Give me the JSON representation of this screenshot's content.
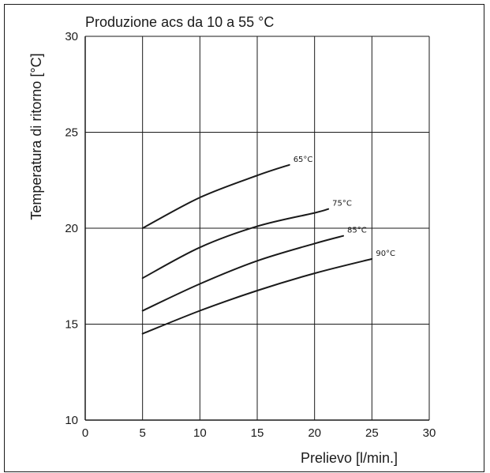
{
  "chart_data": {
    "type": "line",
    "title": "Produzione acs da 10 a 55 °C",
    "xlabel": "Prelievo [l/min.]",
    "ylabel": "Temperatura di ritorno [°C]",
    "xlim": [
      0,
      30
    ],
    "ylim": [
      10,
      30
    ],
    "xticks": [
      0,
      5,
      10,
      15,
      20,
      25,
      30
    ],
    "yticks": [
      10,
      15,
      20,
      25,
      30
    ],
    "grid": true,
    "line_color": "#1a1a1a",
    "series": [
      {
        "name": "65°C",
        "points": [
          [
            5,
            20.0
          ],
          [
            10,
            21.6
          ],
          [
            15,
            22.75
          ],
          [
            17.8,
            23.3
          ]
        ]
      },
      {
        "name": "75°C",
        "points": [
          [
            5,
            17.4
          ],
          [
            10,
            19.0
          ],
          [
            15,
            20.1
          ],
          [
            20,
            20.8
          ],
          [
            21.2,
            21.0
          ]
        ]
      },
      {
        "name": "85°C",
        "points": [
          [
            5,
            15.7
          ],
          [
            10,
            17.1
          ],
          [
            15,
            18.3
          ],
          [
            20,
            19.2
          ],
          [
            22.5,
            19.6
          ]
        ]
      },
      {
        "name": "90°C",
        "points": [
          [
            5,
            14.5
          ],
          [
            10,
            15.7
          ],
          [
            15,
            16.75
          ],
          [
            20,
            17.65
          ],
          [
            25,
            18.4
          ]
        ]
      }
    ]
  }
}
